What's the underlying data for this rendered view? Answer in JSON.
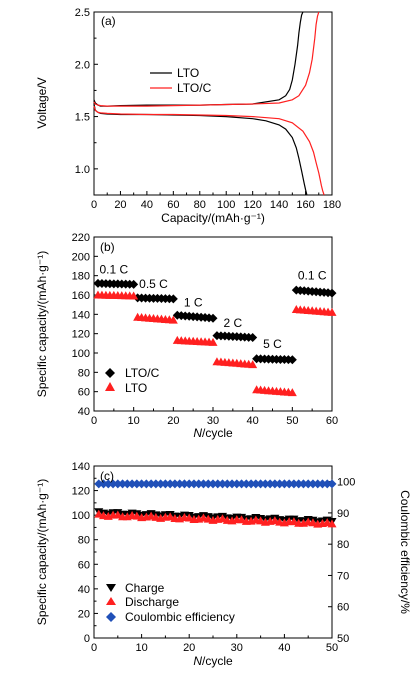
{
  "chart_data": [
    {
      "type": "line",
      "panel_label": "(a)",
      "xlabel": "Capacity/(mAh·g⁻¹)",
      "ylabel": "Voltage/V",
      "xlim": [
        0,
        180
      ],
      "ylim": [
        0.75,
        2.5
      ],
      "xticks": [
        "0",
        "20",
        "40",
        "60",
        "80",
        "100",
        "120",
        "140",
        "160",
        "180"
      ],
      "yticks": [
        "1.0",
        "1.5",
        "2.0",
        "2.5"
      ],
      "legend": "inside-left",
      "series": [
        {
          "name": "LTO",
          "color": "#000000",
          "segments": [
            {
              "x": [
                0,
                1,
                3,
                5,
                10,
                20,
                40,
                60,
                80,
                100,
                120,
                140,
                145,
                148,
                150,
                152,
                154,
                155,
                156,
                157,
                158
              ],
              "y": [
                1.66,
                1.63,
                1.61,
                1.6,
                1.6,
                1.605,
                1.61,
                1.61,
                1.61,
                1.615,
                1.62,
                1.66,
                1.7,
                1.76,
                1.85,
                2.0,
                2.18,
                2.3,
                2.4,
                2.47,
                2.5
              ]
            },
            {
              "x": [
                0,
                1,
                3,
                5,
                10,
                20,
                40,
                60,
                80,
                100,
                120,
                130,
                140,
                145,
                150,
                153,
                155,
                157,
                159,
                160,
                161
              ],
              "y": [
                1.62,
                1.56,
                1.54,
                1.53,
                1.525,
                1.52,
                1.52,
                1.515,
                1.51,
                1.5,
                1.48,
                1.46,
                1.42,
                1.38,
                1.3,
                1.2,
                1.1,
                0.98,
                0.86,
                0.8,
                0.75
              ]
            }
          ]
        },
        {
          "name": "LTO/C",
          "color": "#ff2020",
          "segments": [
            {
              "x": [
                0,
                1,
                3,
                5,
                10,
                20,
                40,
                60,
                80,
                100,
                120,
                140,
                150,
                155,
                160,
                163,
                165,
                167,
                168,
                169,
                170
              ],
              "y": [
                1.64,
                1.62,
                1.61,
                1.605,
                1.6,
                1.6,
                1.6,
                1.605,
                1.61,
                1.615,
                1.62,
                1.63,
                1.66,
                1.7,
                1.8,
                1.92,
                2.05,
                2.25,
                2.38,
                2.46,
                2.5
              ]
            },
            {
              "x": [
                0,
                1,
                3,
                5,
                10,
                20,
                40,
                60,
                80,
                100,
                120,
                140,
                150,
                158,
                163,
                166,
                168,
                170,
                171,
                172,
                173,
                174
              ],
              "y": [
                1.6,
                1.56,
                1.54,
                1.535,
                1.53,
                1.525,
                1.52,
                1.52,
                1.515,
                1.51,
                1.5,
                1.48,
                1.44,
                1.36,
                1.26,
                1.16,
                1.06,
                0.96,
                0.9,
                0.84,
                0.79,
                0.75
              ]
            }
          ]
        }
      ]
    },
    {
      "type": "scatter",
      "panel_label": "(b)",
      "xlabel_italic": "N",
      "xlabel_rest": "/cycle",
      "ylabel": "Specific capacity/(mAh·g⁻¹)",
      "xlim": [
        0,
        60
      ],
      "ylim": [
        40,
        220
      ],
      "xticks": [
        "0",
        "10",
        "20",
        "30",
        "40",
        "50",
        "60"
      ],
      "yticks": [
        "40",
        "60",
        "80",
        "100",
        "120",
        "140",
        "160",
        "180",
        "200",
        "220"
      ],
      "legend": "lower-left",
      "rates": [
        {
          "label": "0.1 C",
          "x": 5,
          "y": 182
        },
        {
          "label": "0.5 C",
          "x": 15,
          "y": 167
        },
        {
          "label": "1 C",
          "x": 25,
          "y": 148
        },
        {
          "label": "2 C",
          "x": 35,
          "y": 127
        },
        {
          "label": "5 C",
          "x": 45,
          "y": 105
        },
        {
          "label": "0.1 C",
          "x": 55,
          "y": 176
        }
      ],
      "series": [
        {
          "name": "LTO/C",
          "marker": "diamond",
          "color": "#000000",
          "x_start": 1,
          "x_end": 60,
          "block_start": [
            172,
            157,
            139,
            118,
            94,
            165
          ],
          "block_end": [
            171,
            156,
            136,
            116,
            93,
            162
          ]
        },
        {
          "name": "LTO",
          "marker": "triangle",
          "color": "#ff2020",
          "x_start": 1,
          "x_end": 60,
          "block_start": [
            160,
            137,
            113,
            91,
            62,
            145
          ],
          "block_end": [
            159,
            134,
            111,
            88,
            59,
            142
          ]
        }
      ]
    },
    {
      "type": "scatter",
      "panel_label": "(c)",
      "xlabel_italic": "N",
      "xlabel_rest": "/cycle",
      "ylabel": "Specific capacity/(mAh·g⁻¹)",
      "ylabel_right": "Coulombic efficiency/%",
      "xlim": [
        0,
        50
      ],
      "ylim": [
        0,
        140
      ],
      "ylim_right": [
        50,
        105
      ],
      "xticks": [
        "0",
        "10",
        "20",
        "30",
        "40",
        "50"
      ],
      "yticks": [
        "0",
        "20",
        "40",
        "60",
        "80",
        "100",
        "120",
        "140"
      ],
      "yticks_right": [
        "50",
        "60",
        "70",
        "80",
        "90",
        "100"
      ],
      "legend": "lower-left",
      "series": [
        {
          "name": "Charge",
          "marker": "triangle-down",
          "color": "#000000",
          "axis": "left",
          "x_start": 1,
          "x_end": 50,
          "y_start": 102,
          "y_end": 95
        },
        {
          "name": "Discharge",
          "marker": "triangle",
          "color": "#ff2020",
          "axis": "left",
          "x_start": 1,
          "x_end": 50,
          "y_start": 100,
          "y_end": 93
        },
        {
          "name": "Coulombic efficiency",
          "marker": "diamond",
          "color": "#2050b8",
          "axis": "right",
          "x_start": 1,
          "x_end": 50,
          "y_start": 99.3,
          "y_end": 99.3
        }
      ]
    }
  ]
}
